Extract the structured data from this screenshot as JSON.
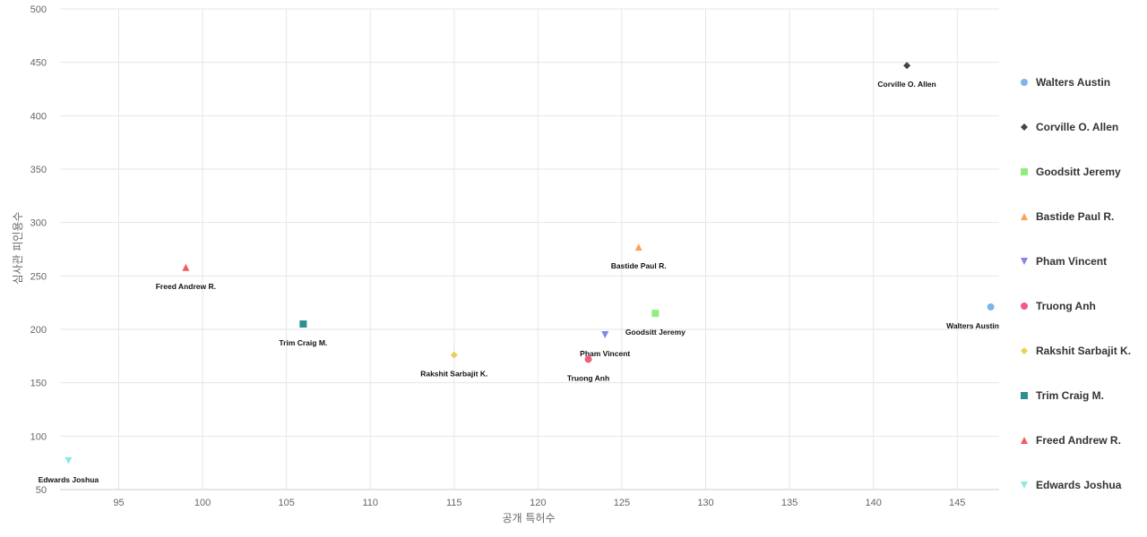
{
  "chart_data": {
    "type": "scatter",
    "title": "",
    "xlabel": "공개 특허수",
    "ylabel": "심사관 피인용수",
    "xlim": [
      91.5,
      147.5
    ],
    "ylim": [
      50,
      500
    ],
    "x_ticks": [
      95,
      100,
      105,
      110,
      115,
      120,
      125,
      130,
      135,
      140,
      145
    ],
    "y_ticks": [
      50,
      100,
      150,
      200,
      250,
      300,
      350,
      400,
      450,
      500
    ],
    "grid": true,
    "legend_position": "right",
    "series": [
      {
        "name": "Walters Austin",
        "marker": "circle",
        "color": "#7cb5ec",
        "points": [
          {
            "x": 147,
            "y": 221,
            "label": "Walters Austin"
          }
        ]
      },
      {
        "name": "Corville O. Allen",
        "marker": "diamond",
        "color": "#434348",
        "points": [
          {
            "x": 142,
            "y": 447,
            "label": "Corville O. Allen"
          }
        ]
      },
      {
        "name": "Goodsitt Jeremy",
        "marker": "square",
        "color": "#90ed7d",
        "points": [
          {
            "x": 127,
            "y": 215,
            "label": "Goodsitt Jeremy"
          }
        ]
      },
      {
        "name": "Bastide Paul R.",
        "marker": "triangle",
        "color": "#f7a35c",
        "points": [
          {
            "x": 126,
            "y": 277,
            "label": "Bastide Paul R."
          }
        ]
      },
      {
        "name": "Pham Vincent",
        "marker": "triangle-down",
        "color": "#8085e9",
        "points": [
          {
            "x": 124,
            "y": 195,
            "label": "Pham Vincent"
          }
        ]
      },
      {
        "name": "Truong Anh",
        "marker": "circle",
        "color": "#f15c80",
        "points": [
          {
            "x": 123,
            "y": 172,
            "label": "Truong Anh"
          }
        ]
      },
      {
        "name": "Rakshit Sarbajit K.",
        "marker": "diamond",
        "color": "#e4d354",
        "points": [
          {
            "x": 115,
            "y": 176,
            "label": "Rakshit Sarbajit K."
          }
        ]
      },
      {
        "name": "Trim Craig M.",
        "marker": "square",
        "color": "#2b908f",
        "points": [
          {
            "x": 106,
            "y": 205,
            "label": "Trim Craig M."
          }
        ]
      },
      {
        "name": "Freed Andrew R.",
        "marker": "triangle",
        "color": "#f45b5b",
        "points": [
          {
            "x": 99,
            "y": 258,
            "label": "Freed Andrew R."
          }
        ]
      },
      {
        "name": "Edwards Joshua",
        "marker": "triangle-down",
        "color": "#91e8e1",
        "points": [
          {
            "x": 92,
            "y": 77,
            "label": "Edwards Joshua"
          }
        ]
      }
    ]
  }
}
